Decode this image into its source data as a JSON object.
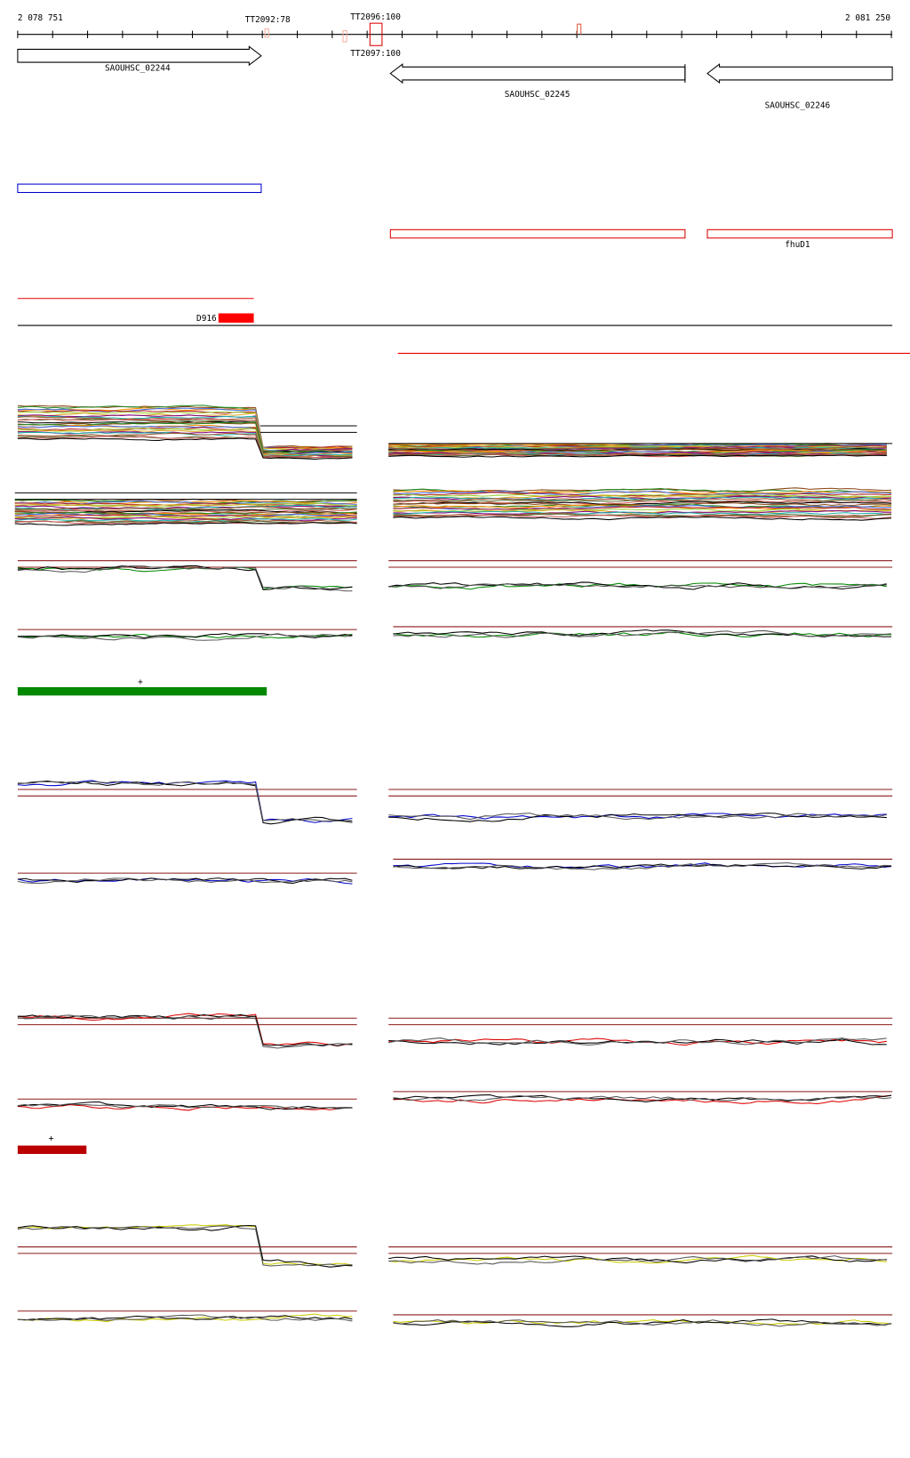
{
  "ruler": {
    "start": "2 078 751",
    "end": "2 081 250"
  },
  "terminators": [
    {
      "label": "TT2092:78"
    },
    {
      "label": "TT2096:100"
    },
    {
      "label": "TT2097:100"
    }
  ],
  "genes": [
    {
      "label": "SAOUHSC_02244"
    },
    {
      "label": "SAOUHSC_02245"
    },
    {
      "label": "SAOUHSC_02246"
    }
  ],
  "gene_names": [
    {
      "label": "fhuD1"
    }
  ],
  "probes": [
    {
      "label": "D916"
    }
  ],
  "segments": [
    {
      "label": "+"
    },
    {
      "label": "+"
    }
  ]
}
